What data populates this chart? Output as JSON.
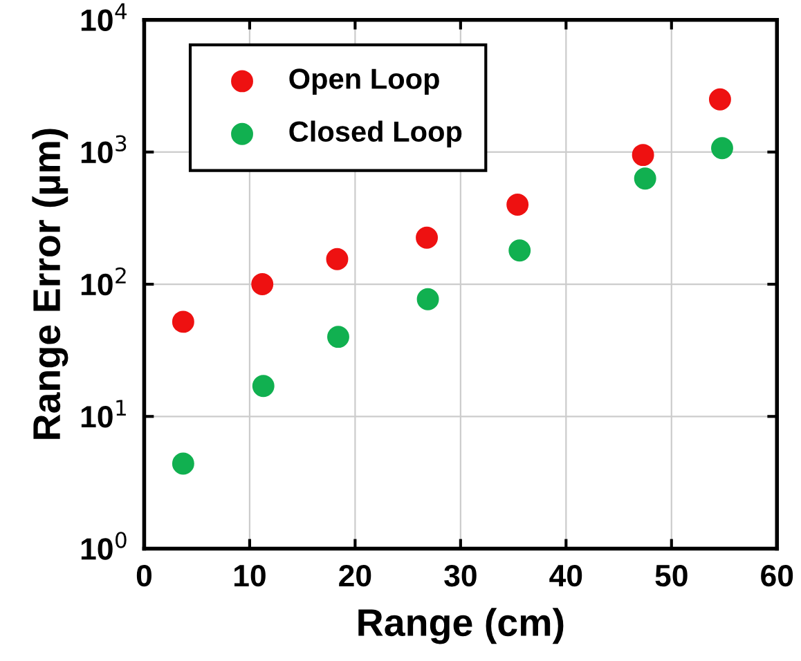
{
  "chart_data": {
    "type": "scatter",
    "xlabel": "Range (cm)",
    "ylabel": "Range Error (µm)",
    "log": "y",
    "xlim": [
      0,
      60
    ],
    "xticks": [
      0,
      10,
      20,
      30,
      40,
      50,
      60
    ],
    "ylim": [
      1,
      10000
    ],
    "yticks": [
      {
        "value": 1,
        "label": "10$^{0}$"
      },
      {
        "value": 10,
        "label": "10$^{1}$"
      },
      {
        "value": 100,
        "label": "10$^{2}$"
      },
      {
        "value": 1000,
        "label": "10$^{3}$"
      },
      {
        "value": 10000,
        "label": "10$^{4}$"
      }
    ],
    "grid": true,
    "legend": "top left",
    "marker": "circle",
    "series": [
      {
        "name": "Open Loop",
        "color": "#ee1111",
        "x": [
          3.7,
          11.2,
          18.3,
          26.8,
          35.4,
          47.3,
          54.6
        ],
        "values": [
          52,
          100,
          155,
          225,
          400,
          950,
          2500
        ]
      },
      {
        "name": "Closed Loop",
        "color": "#11b050",
        "x": [
          3.7,
          11.3,
          18.4,
          26.9,
          35.6,
          47.5,
          54.8
        ],
        "values": [
          4.4,
          17,
          40,
          77,
          180,
          630,
          1070
        ]
      }
    ]
  }
}
